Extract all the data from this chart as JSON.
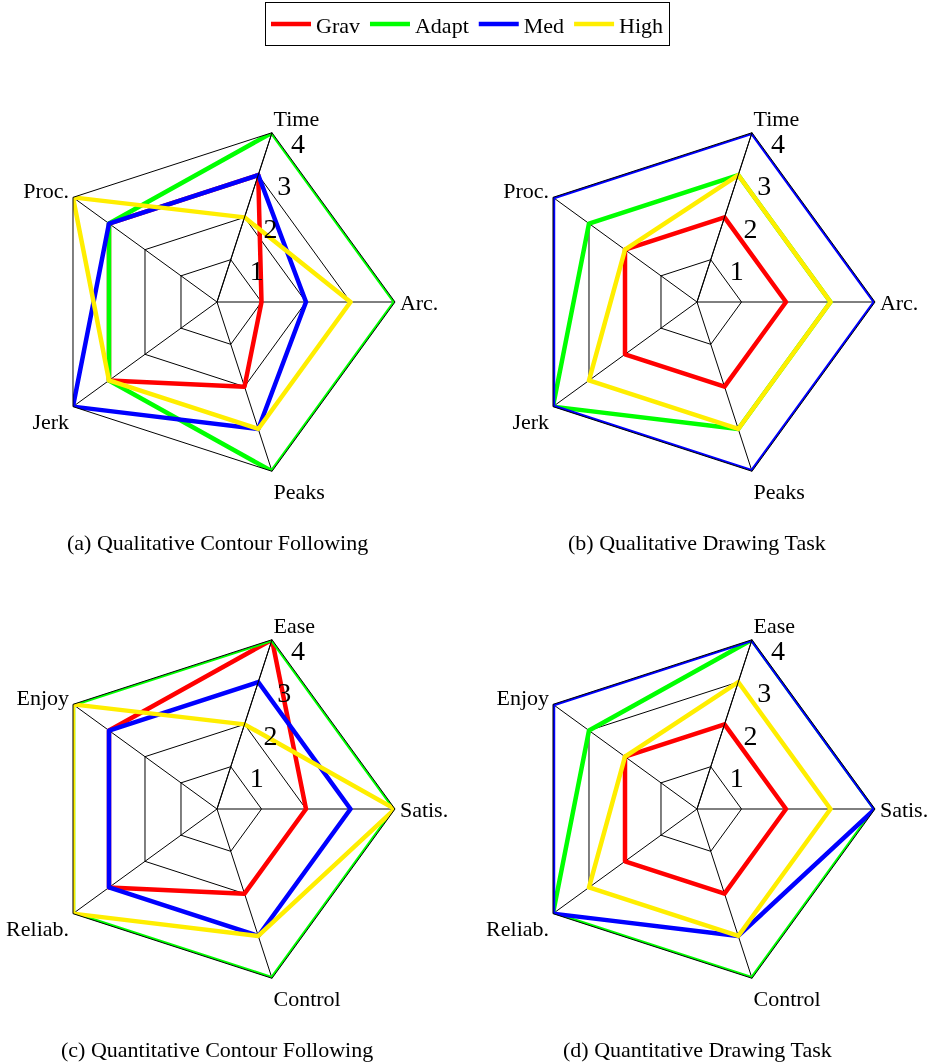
{
  "chart_data": [
    {
      "type": "radar",
      "title": "(a) Qualitative Contour Following",
      "categories": [
        "Time",
        "Arc.",
        "Peaks",
        "Jerk",
        "Proc."
      ],
      "ylim": [
        0,
        4
      ],
      "yticks": [
        1,
        2,
        3,
        4
      ],
      "grid": true,
      "legend": "top",
      "series": [
        {
          "name": "Grav",
          "color": "#ff0000",
          "values": [
            3,
            1,
            2,
            3,
            3
          ]
        },
        {
          "name": "Adapt",
          "color": "#00ff00",
          "values": [
            4,
            4,
            4,
            3,
            3
          ]
        },
        {
          "name": "Med",
          "color": "#0000ff",
          "values": [
            3,
            2,
            3,
            4,
            3
          ]
        },
        {
          "name": "High",
          "color": "#ffee00",
          "values": [
            2,
            3,
            3,
            3,
            4
          ]
        }
      ]
    },
    {
      "type": "radar",
      "title": "(b) Qualitative Drawing Task",
      "categories": [
        "Time",
        "Arc.",
        "Peaks",
        "Jerk",
        "Proc."
      ],
      "ylim": [
        0,
        4
      ],
      "yticks": [
        1,
        2,
        3,
        4
      ],
      "grid": true,
      "series": [
        {
          "name": "Grav",
          "color": "#ff0000",
          "values": [
            2,
            2,
            2,
            2,
            2
          ]
        },
        {
          "name": "Adapt",
          "color": "#00ff00",
          "values": [
            3,
            3,
            3,
            4,
            3
          ]
        },
        {
          "name": "Med",
          "color": "#0000ff",
          "values": [
            4,
            4,
            4,
            4,
            4
          ]
        },
        {
          "name": "High",
          "color": "#ffee00",
          "values": [
            3,
            3,
            3,
            3,
            2
          ]
        }
      ]
    },
    {
      "type": "radar",
      "title": "(c) Quantitative Contour Following",
      "categories": [
        "Ease",
        "Satis.",
        "Control",
        "Reliab.",
        "Enjoy"
      ],
      "ylim": [
        0,
        4
      ],
      "yticks": [
        1,
        2,
        3,
        4
      ],
      "grid": true,
      "series": [
        {
          "name": "Grav",
          "color": "#ff0000",
          "values": [
            4,
            2,
            2,
            3,
            3
          ]
        },
        {
          "name": "Adapt",
          "color": "#00ff00",
          "values": [
            4,
            4,
            4,
            4,
            4
          ]
        },
        {
          "name": "Med",
          "color": "#0000ff",
          "values": [
            3,
            3,
            3,
            3,
            3
          ]
        },
        {
          "name": "High",
          "color": "#ffee00",
          "values": [
            2,
            4,
            3,
            4,
            4
          ]
        }
      ]
    },
    {
      "type": "radar",
      "title": "(d) Quantitative Drawing Task",
      "categories": [
        "Ease",
        "Satis.",
        "Control",
        "Reliab.",
        "Enjoy"
      ],
      "ylim": [
        0,
        4
      ],
      "yticks": [
        1,
        2,
        3,
        4
      ],
      "grid": true,
      "series": [
        {
          "name": "Grav",
          "color": "#ff0000",
          "values": [
            2,
            2,
            2,
            2,
            2
          ]
        },
        {
          "name": "Adapt",
          "color": "#00ff00",
          "values": [
            4,
            4,
            4,
            4,
            3
          ]
        },
        {
          "name": "Med",
          "color": "#0000ff",
          "values": [
            4,
            4,
            3,
            4,
            4
          ]
        },
        {
          "name": "High",
          "color": "#ffee00",
          "values": [
            3,
            3,
            3,
            3,
            2
          ]
        }
      ]
    }
  ]
}
